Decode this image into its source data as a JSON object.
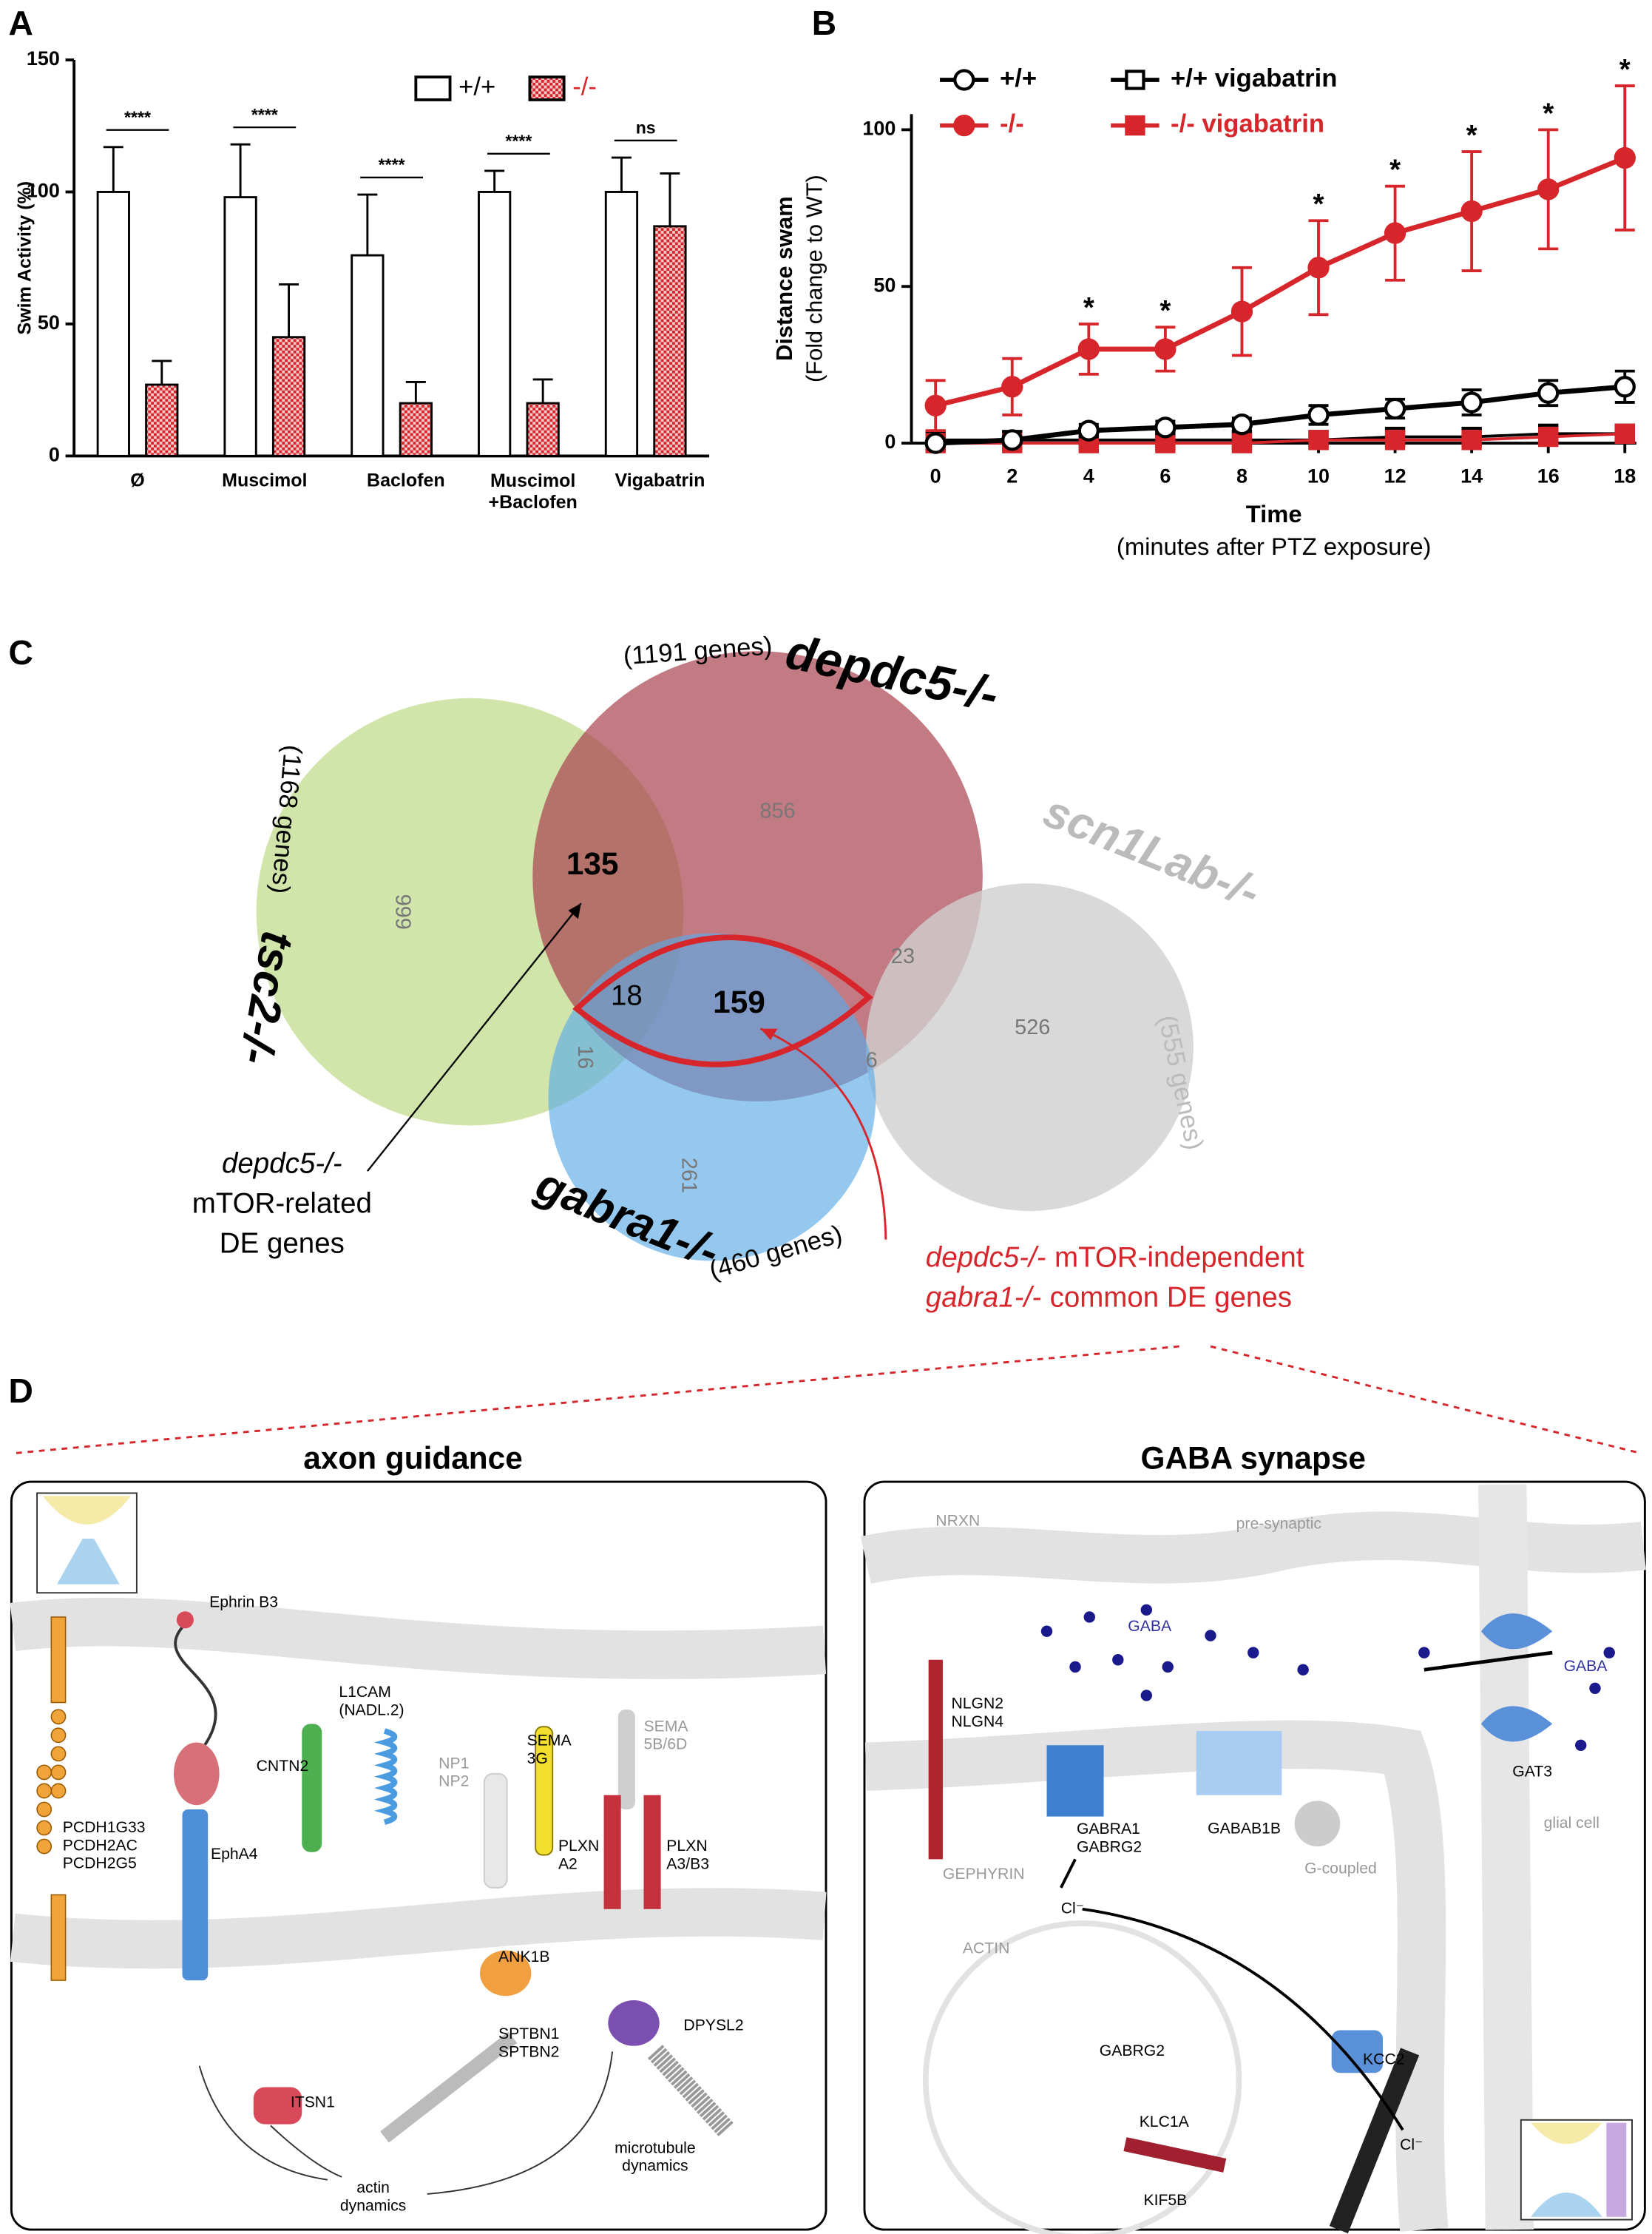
{
  "panels": [
    "A",
    "B",
    "C",
    "D"
  ],
  "chart_data": [
    {
      "type": "bar",
      "ylabel": "Swim Activity (%)",
      "categories": [
        "Ø",
        "Muscimol",
        "Baclofen",
        "Muscimol\n+Baclofen",
        "Vigabatrin"
      ],
      "series": [
        {
          "name": "+/+",
          "color": "#ffffff",
          "values": [
            100,
            98,
            76,
            100,
            100
          ],
          "errors": [
            17,
            20,
            23,
            8,
            13
          ]
        },
        {
          "name": "-/-",
          "color": "#d7262b",
          "pattern": "checkered",
          "values": [
            27,
            45,
            20,
            20,
            87
          ],
          "errors": [
            9,
            20,
            8,
            9,
            20
          ]
        }
      ],
      "significance": [
        "****",
        "****",
        "****",
        "****",
        "ns"
      ],
      "ylim": [
        0,
        150
      ],
      "yticks": [
        0,
        50,
        100,
        150
      ]
    },
    {
      "type": "line",
      "ylabel": "Distance swam",
      "ylabel_sub": "(Fold change to WT)",
      "xlabel": "Time",
      "xlabel_sub": "(minutes after PTZ exposure)",
      "x": [
        0,
        2,
        4,
        6,
        8,
        10,
        12,
        14,
        16,
        18
      ],
      "series": [
        {
          "name": "+/+",
          "color": "#000000",
          "marker": "circle",
          "filled": false,
          "values": [
            0,
            1,
            4,
            5,
            6,
            9,
            11,
            13,
            16,
            18
          ],
          "errors": [
            1,
            1,
            2,
            2,
            2,
            3,
            3,
            4,
            4,
            5
          ]
        },
        {
          "name": "-/-",
          "color": "#d7262b",
          "marker": "circle",
          "filled": true,
          "values": [
            12,
            18,
            30,
            30,
            42,
            56,
            67,
            74,
            81,
            91
          ],
          "errors": [
            8,
            9,
            8,
            7,
            14,
            15,
            15,
            19,
            19,
            23
          ]
        },
        {
          "name": "+/+ vigabatrin",
          "color": "#000000",
          "marker": "square",
          "filled": false,
          "values": [
            1,
            1,
            1,
            1,
            1,
            1,
            2,
            2,
            3,
            3
          ],
          "errors": [
            1,
            1,
            1,
            1,
            1,
            1,
            2,
            2,
            2,
            2
          ]
        },
        {
          "name": "-/- vigabatrin",
          "color": "#d7262b",
          "marker": "square",
          "filled": true,
          "values": [
            0,
            0,
            0,
            0,
            0,
            1,
            1,
            1,
            2,
            3
          ],
          "errors": [
            0,
            0,
            0,
            0,
            0,
            1,
            1,
            1,
            1,
            1
          ]
        }
      ],
      "annotations": [
        {
          "x": 4,
          "label": "*"
        },
        {
          "x": 6,
          "label": "*"
        },
        {
          "x": 10,
          "label": "*"
        },
        {
          "x": 12,
          "label": "*"
        },
        {
          "x": 14,
          "label": "*"
        },
        {
          "x": 16,
          "label": "*"
        },
        {
          "x": 18,
          "label": "*"
        }
      ],
      "xlim": [
        -0.63,
        18.3
      ],
      "xticks": [
        0,
        2,
        4,
        6,
        8,
        10,
        12,
        14,
        16,
        18
      ],
      "ylim": [
        0,
        105
      ],
      "yticks": [
        0,
        50,
        100
      ]
    }
  ],
  "venn": {
    "sets": [
      {
        "name": "tsc2-/-",
        "size": "(1168 genes)"
      },
      {
        "name": "depdc5-/-",
        "size": "(1191 genes)"
      },
      {
        "name": "gabra1-/-",
        "size": "(460 genes)"
      },
      {
        "name": "scn1Lab-/-",
        "size": "(555 genes)"
      }
    ],
    "regions": [
      999,
      856,
      261,
      526,
      135,
      18,
      159,
      16,
      23,
      6
    ],
    "note_left": {
      "gene": "depdc5-/-",
      "lines": [
        "mTOR-related",
        "DE genes"
      ]
    },
    "note_right": [
      {
        "gene": "depdc5-/-",
        "text": "mTOR-independent"
      },
      {
        "gene": "gabra1-/-",
        "text": "common DE genes"
      }
    ]
  },
  "diagram": {
    "left": {
      "title": "axon guidance",
      "labels": [
        "Ephrin B3",
        "PCDH1G33\nPCDH2AC\nPCDH2G5",
        "EphA4",
        "CNTN2",
        "L1CAM\n(NADL.2)",
        "NP1\nNP2",
        "SEMA\n3G",
        "SEMA\n5B/6D",
        "PLXN\nA2",
        "PLXN\nA3/B3",
        "ANK1B",
        "SPTBN1\nSPTBN2",
        "DPYSL2",
        "ITSN1",
        "actin\ndynamics",
        "microtubule\ndynamics"
      ]
    },
    "right": {
      "title": "GABA synapse",
      "labels": [
        "NRXN",
        "pre-synaptic",
        "GABA",
        "GABA",
        "NLGN2\nNLGN4",
        "GABRA1\nGABRG2",
        "GABAB1B",
        "G-coupled",
        "GAT3",
        "glial cell",
        "GEPHYRIN",
        "ACTIN",
        "Cl⁻",
        "GABRG2",
        "KCC2",
        "Cl⁻",
        "KLC1A",
        "KIF5B"
      ]
    }
  }
}
